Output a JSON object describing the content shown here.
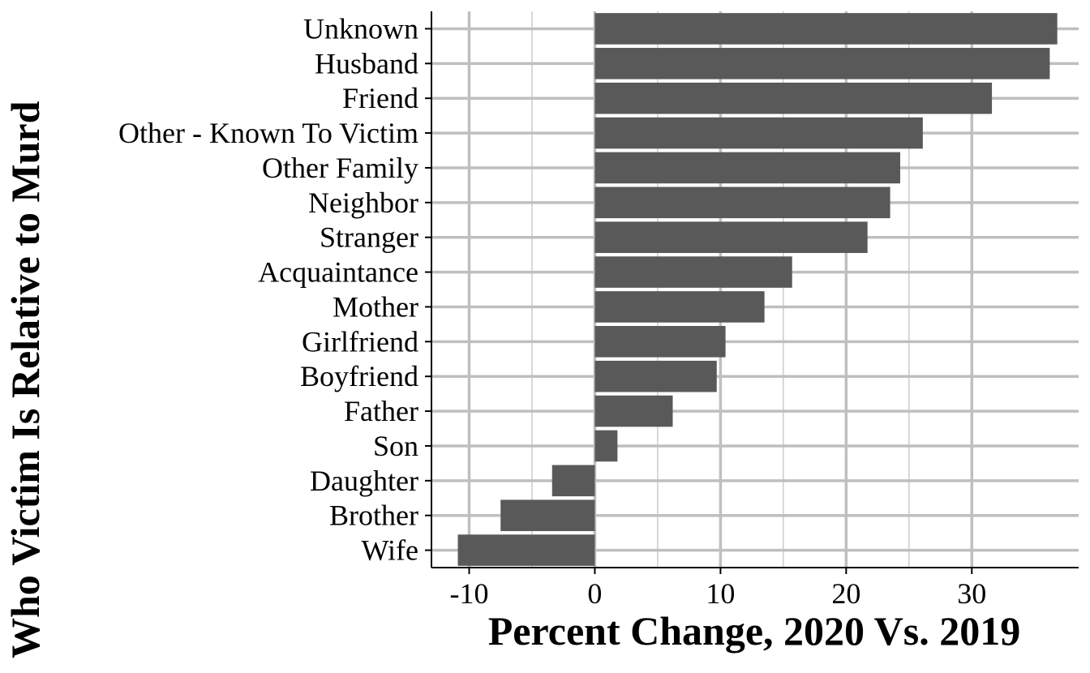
{
  "chart_data": {
    "type": "bar",
    "orientation": "horizontal",
    "xlabel": "Percent Change, 2020 Vs. 2019",
    "ylabel": "Who Victim Is Relative to Murd",
    "categories": [
      "Unknown",
      "Husband",
      "Friend",
      "Other - Known To Victim",
      "Other Family",
      "Neighbor",
      "Stranger",
      "Acquaintance",
      "Mother",
      "Girlfriend",
      "Boyfriend",
      "Father",
      "Son",
      "Daughter",
      "Brother",
      "Wife"
    ],
    "values": [
      36.8,
      36.2,
      31.6,
      26.1,
      24.3,
      23.5,
      21.7,
      15.7,
      13.5,
      10.4,
      9.7,
      6.2,
      1.8,
      -3.4,
      -7.5,
      -10.9
    ],
    "xlim": [
      -13,
      38.5
    ],
    "xticks": [
      "-10",
      "0",
      "10",
      "20",
      "30"
    ],
    "xtick_values": [
      -10,
      0,
      10,
      20,
      30
    ],
    "grid": true,
    "bar_color": "#595959",
    "grid_color": "#bfbfbf"
  }
}
